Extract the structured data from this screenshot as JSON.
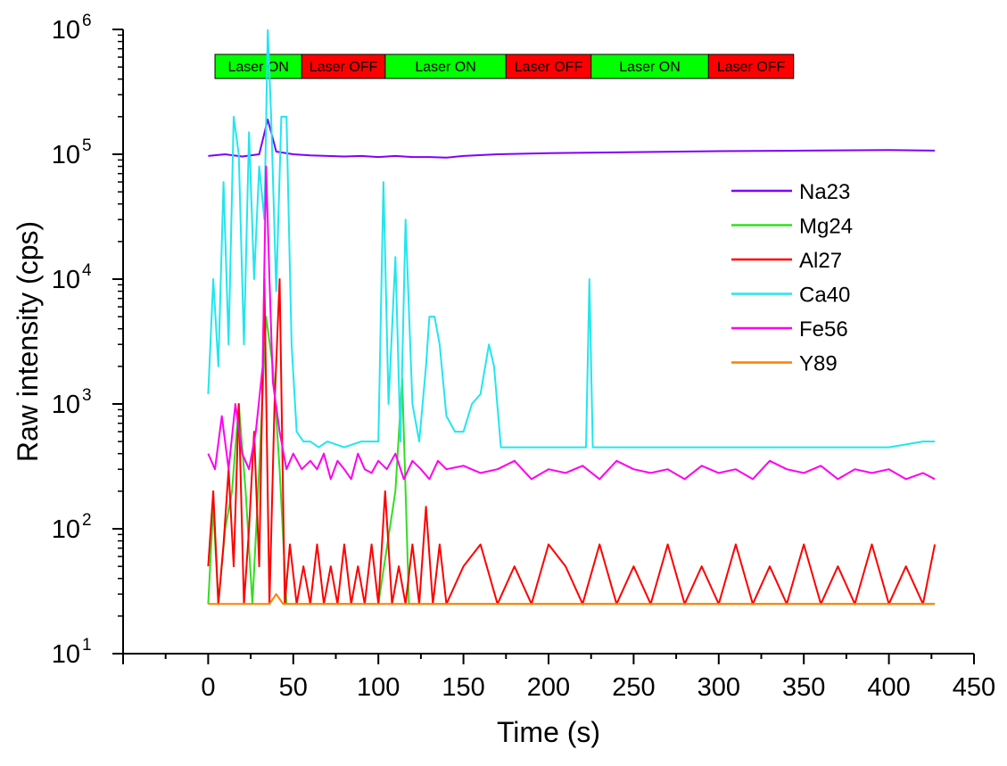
{
  "chart_data": {
    "type": "line",
    "title": "",
    "xlabel": "Time (s)",
    "ylabel": "Raw intensity (cps)",
    "xlim": [
      -50,
      450
    ],
    "ylim": [
      10,
      1000000
    ],
    "y_scale": "log",
    "x_ticks": [
      0,
      50,
      100,
      150,
      200,
      250,
      300,
      350,
      400,
      450
    ],
    "x_tick_labels": [
      "0",
      "50",
      "100",
      "150",
      "200",
      "250",
      "300",
      "350",
      "400",
      "450"
    ],
    "y_tick_base": "10",
    "y_tick_exponents": [
      "1",
      "2",
      "3",
      "4",
      "5",
      "6"
    ],
    "y_ticks": [
      10,
      100,
      1000,
      10000,
      100000,
      1000000
    ],
    "grid": false,
    "legend_position": "top-right",
    "phases": [
      {
        "label": "Laser ON",
        "start": 4,
        "end": 55,
        "color": "#00ff00"
      },
      {
        "label": "Laser OFF",
        "start": 55,
        "end": 104,
        "color": "#ff0000"
      },
      {
        "label": "Laser ON",
        "start": 104,
        "end": 175,
        "color": "#00ff00"
      },
      {
        "label": "Laser OFF",
        "start": 175,
        "end": 225,
        "color": "#ff0000"
      },
      {
        "label": "Laser ON",
        "start": 225,
        "end": 294,
        "color": "#00ff00"
      },
      {
        "label": "Laser OFF",
        "start": 294,
        "end": 344,
        "color": "#ff0000"
      }
    ],
    "series": [
      {
        "name": "Na23",
        "color": "#8000ff",
        "x": [
          0,
          10,
          20,
          30,
          35,
          40,
          50,
          60,
          70,
          80,
          90,
          100,
          110,
          120,
          130,
          140,
          150,
          170,
          200,
          250,
          300,
          350,
          400,
          427
        ],
        "y": [
          97000,
          100000,
          96000,
          100000,
          190000,
          105000,
          100000,
          98000,
          97000,
          96000,
          97000,
          95000,
          97000,
          95000,
          95000,
          94000,
          97000,
          100000,
          102000,
          104000,
          106000,
          107000,
          108000,
          107000
        ]
      },
      {
        "name": "Mg24",
        "color": "#33dd22",
        "x": [
          0,
          3,
          6,
          10,
          14,
          18,
          22,
          26,
          30,
          34,
          38,
          42,
          46,
          50,
          60,
          80,
          100,
          110,
          114,
          118,
          125,
          150,
          200,
          250,
          300,
          350,
          400,
          427
        ],
        "y": [
          25,
          150,
          25,
          100,
          200,
          1000,
          200,
          25,
          300,
          5000,
          2000,
          300,
          25,
          25,
          25,
          25,
          25,
          200,
          1600,
          25,
          25,
          25,
          25,
          25,
          25,
          25,
          25,
          25
        ]
      },
      {
        "name": "Al27",
        "color": "#ff0000",
        "x": [
          0,
          3,
          6,
          9,
          12,
          15,
          18,
          21,
          24,
          27,
          30,
          33,
          36,
          39,
          42,
          45,
          48,
          52,
          56,
          60,
          64,
          68,
          72,
          76,
          80,
          84,
          88,
          92,
          96,
          100,
          104,
          108,
          112,
          116,
          120,
          124,
          128,
          132,
          136,
          140,
          150,
          160,
          170,
          180,
          190,
          200,
          210,
          220,
          230,
          240,
          250,
          260,
          270,
          280,
          290,
          300,
          310,
          320,
          330,
          340,
          350,
          360,
          370,
          380,
          390,
          400,
          410,
          420,
          427
        ],
        "y": [
          50,
          200,
          25,
          75,
          300,
          50,
          1000,
          25,
          100,
          600,
          50,
          10000,
          25,
          1000,
          10000,
          25,
          75,
          25,
          50,
          25,
          75,
          25,
          50,
          25,
          75,
          25,
          50,
          25,
          75,
          25,
          200,
          25,
          50,
          25,
          75,
          25,
          150,
          25,
          75,
          25,
          50,
          75,
          25,
          50,
          25,
          75,
          50,
          25,
          75,
          25,
          50,
          25,
          75,
          25,
          50,
          25,
          75,
          25,
          50,
          25,
          75,
          25,
          50,
          25,
          75,
          25,
          50,
          25,
          75
        ]
      },
      {
        "name": "Ca40",
        "color": "#22e6ee",
        "x": [
          0,
          3,
          6,
          9,
          12,
          15,
          18,
          21,
          24,
          27,
          30,
          33,
          35,
          37,
          40,
          43,
          46,
          49,
          52,
          56,
          60,
          65,
          70,
          80,
          90,
          100,
          103,
          106,
          110,
          113,
          116,
          120,
          124,
          128,
          130,
          133,
          136,
          140,
          145,
          150,
          155,
          160,
          165,
          168,
          172,
          180,
          200,
          222,
          224,
          226,
          250,
          300,
          350,
          400,
          420,
          427
        ],
        "y": [
          1200,
          10000,
          2000,
          60000,
          3000,
          200000,
          100000,
          3000,
          150000,
          10000,
          80000,
          30000,
          1000000,
          200000,
          8000,
          200000,
          200000,
          3000,
          600,
          500,
          500,
          450,
          500,
          450,
          500,
          500,
          60000,
          1000,
          15000,
          500,
          30000,
          1000,
          500,
          2000,
          5000,
          5000,
          3000,
          800,
          600,
          600,
          1000,
          1200,
          3000,
          2000,
          450,
          450,
          450,
          450,
          10000,
          450,
          450,
          450,
          450,
          450,
          500,
          500
        ]
      },
      {
        "name": "Fe56",
        "color": "#ff00ee",
        "x": [
          0,
          4,
          8,
          12,
          16,
          20,
          24,
          28,
          32,
          34,
          36,
          38,
          42,
          46,
          50,
          55,
          60,
          64,
          68,
          72,
          76,
          80,
          84,
          88,
          92,
          96,
          100,
          105,
          110,
          115,
          120,
          125,
          130,
          135,
          140,
          150,
          160,
          170,
          180,
          190,
          200,
          210,
          220,
          230,
          240,
          250,
          260,
          270,
          280,
          290,
          300,
          310,
          320,
          330,
          340,
          350,
          360,
          370,
          380,
          390,
          400,
          410,
          420,
          427
        ],
        "y": [
          400,
          300,
          800,
          300,
          1000,
          400,
          300,
          600,
          2000,
          80000,
          10000,
          1500,
          600,
          300,
          400,
          300,
          350,
          300,
          400,
          250,
          350,
          300,
          250,
          400,
          300,
          280,
          350,
          300,
          400,
          250,
          350,
          300,
          250,
          350,
          300,
          320,
          280,
          300,
          350,
          250,
          300,
          280,
          320,
          250,
          350,
          300,
          280,
          300,
          250,
          320,
          280,
          300,
          250,
          350,
          300,
          280,
          320,
          250,
          300,
          280,
          300,
          250,
          280,
          250
        ]
      },
      {
        "name": "Y89",
        "color": "#ff8000",
        "x": [
          0,
          36,
          40,
          44,
          427
        ],
        "y": [
          25,
          25,
          30,
          25,
          25
        ]
      }
    ]
  }
}
